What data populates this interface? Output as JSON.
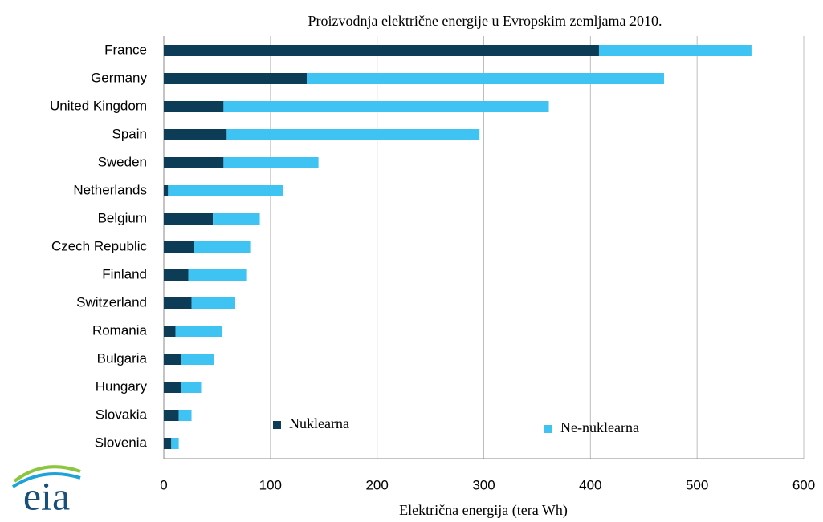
{
  "chart_data": {
    "type": "stacked_bar_horizontal",
    "title": "Proizvodnja električne energije u Evropskim zemljama 2010.",
    "x_label": "Električna energija (tera Wh)",
    "logo": "eia",
    "categories": [
      "France",
      "Germany",
      "United Kingdom",
      "Spain",
      "Sweden",
      "Netherlands",
      "Belgium",
      "Czech Republic",
      "Finland",
      "Switzerland",
      "Romania",
      "Bulgaria",
      "Hungary",
      "Slovakia",
      "Slovenia"
    ],
    "series": [
      {
        "name": "Nuklearna",
        "color": "#0d3d56",
        "values": [
          408,
          134,
          56,
          59,
          56,
          4,
          46,
          28,
          23,
          26,
          11,
          16,
          16,
          14,
          7
        ]
      },
      {
        "name": "Ne-nuklearna",
        "color": "#3fc3f3",
        "values": [
          143,
          335,
          305,
          237,
          89,
          108,
          44,
          53,
          55,
          41,
          44,
          31,
          19,
          12,
          7
        ]
      }
    ],
    "xlim": [
      0,
      600
    ],
    "xticks": [
      0,
      100,
      200,
      300,
      400,
      500,
      600
    ],
    "grid": true
  }
}
